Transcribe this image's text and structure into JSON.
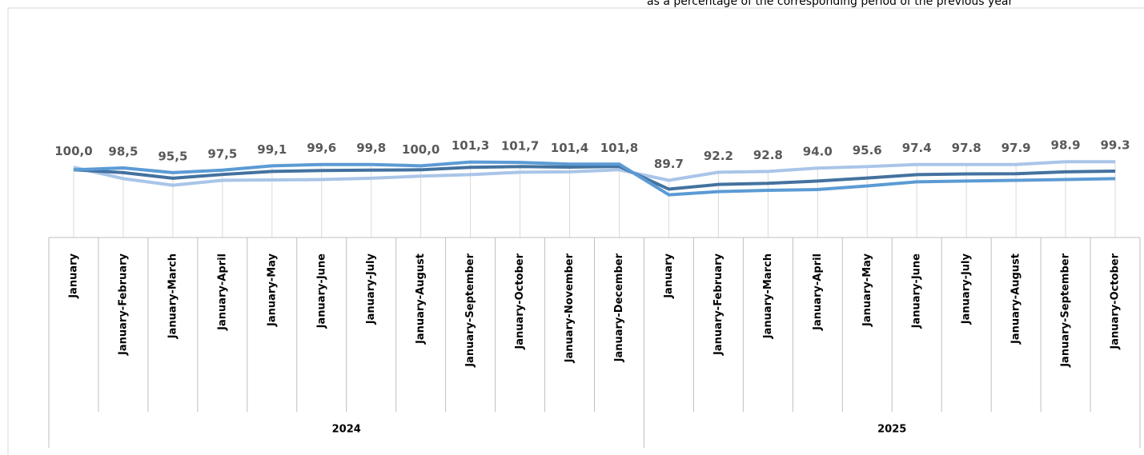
{
  "chart_data": {
    "type": "line",
    "subtitle": "as a percentage of the corresponding period of the previous year",
    "groups": [
      {
        "label": "2024",
        "categories": [
          "January",
          "January-February",
          "January-March",
          "January-April",
          "January-May",
          "January-June",
          "January-July",
          "January-August",
          "January-September",
          "January-October",
          "January-November",
          "January-December"
        ]
      },
      {
        "label": "2025",
        "categories": [
          "January",
          "January-February",
          "January-March",
          "January-April",
          "January-May",
          "January-June",
          "January-July",
          "January-August",
          "January-September",
          "January-October"
        ]
      }
    ],
    "ylim": [
      64,
      186
    ],
    "series": [
      {
        "color": "#a9c5e8",
        "values": [
          101.3,
          95.3,
          91.8,
          94.4,
          94.6,
          94.8,
          95.5,
          96.6,
          97.4,
          98.7,
          98.9,
          100.0,
          94.4,
          98.7,
          99.1,
          100.9,
          101.7,
          102.8,
          102.8,
          102.8,
          104.3,
          104.3
        ]
      },
      {
        "color": "#44729f",
        "values": [
          100.0,
          98.5,
          95.5,
          97.5,
          99.1,
          99.6,
          99.8,
          100.0,
          101.3,
          101.7,
          101.4,
          101.8,
          89.7,
          92.2,
          92.8,
          94.0,
          95.6,
          97.4,
          97.8,
          97.9,
          98.9,
          99.3
        ],
        "value_labels": [
          "100,0",
          "98,5",
          "95,5",
          "97,5",
          "99,1",
          "99,6",
          "99,8",
          "100,0",
          "101,3",
          "101,7",
          "101,4",
          "101,8",
          "89.7",
          "92.2",
          "92.8",
          "94.0",
          "95.6",
          "97.4",
          "97.8",
          "97.9",
          "98.9",
          "99.3"
        ]
      },
      {
        "color": "#5b9bd5",
        "values": [
          100.0,
          101.0,
          98.5,
          99.8,
          102.1,
          102.8,
          102.8,
          102.1,
          104.1,
          103.9,
          103.0,
          103.0,
          86.7,
          88.4,
          89.1,
          89.5,
          91.4,
          93.6,
          94.0,
          94.4,
          94.8,
          95.3
        ]
      }
    ]
  }
}
